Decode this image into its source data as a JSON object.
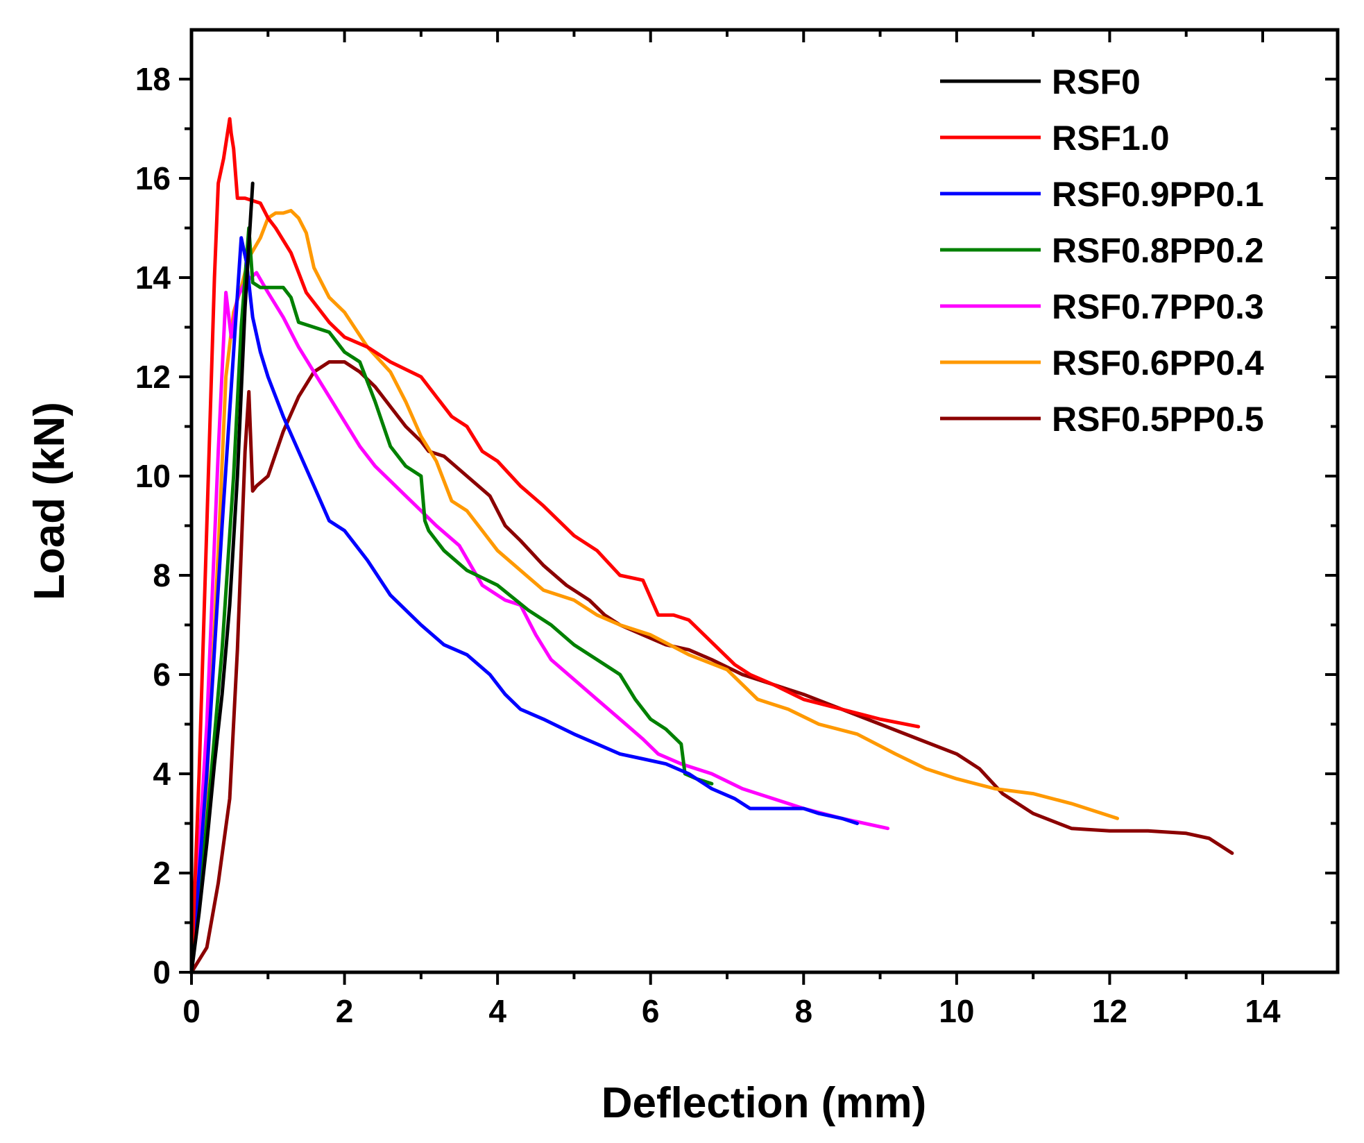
{
  "chart_data": {
    "type": "line",
    "title": "",
    "xlabel": "Deflection (mm)",
    "ylabel": "Load (kN)",
    "xlim": [
      0,
      15
    ],
    "ylim": [
      0,
      19
    ],
    "xticks": [
      0,
      2,
      4,
      6,
      8,
      10,
      12,
      14
    ],
    "yticks": [
      0,
      2,
      4,
      6,
      8,
      10,
      12,
      14,
      16,
      18
    ],
    "xtick_labels": [
      "0",
      "2",
      "4",
      "6",
      "8",
      "10",
      "12",
      "14"
    ],
    "ytick_labels": [
      "0",
      "2",
      "4",
      "6",
      "8",
      "10",
      "12",
      "14",
      "16",
      "18"
    ],
    "legend_position": "top-right",
    "grid": false,
    "series": [
      {
        "name": "RSF0",
        "color": "#000000",
        "x": [
          0,
          0.1,
          0.2,
          0.3,
          0.4,
          0.5,
          0.6,
          0.7,
          0.8
        ],
        "y": [
          0,
          1.2,
          2.6,
          4.2,
          5.6,
          7.4,
          10.0,
          13.4,
          15.9
        ]
      },
      {
        "name": "RSF1.0",
        "color": "#ff0000",
        "x": [
          0,
          0.1,
          0.2,
          0.3,
          0.35,
          0.42,
          0.5,
          0.52,
          0.55,
          0.6,
          0.7,
          0.9,
          1.0,
          1.1,
          1.3,
          1.5,
          1.8,
          2.0,
          2.3,
          2.6,
          3.0,
          3.2,
          3.4,
          3.6,
          3.8,
          4.0,
          4.3,
          4.6,
          5.0,
          5.3,
          5.6,
          5.9,
          6.1,
          6.3,
          6.5,
          6.9,
          7.1,
          7.3,
          7.6,
          8.0,
          8.5,
          9.0,
          9.5
        ],
        "y": [
          0,
          4.0,
          9.0,
          14.0,
          15.9,
          16.4,
          17.2,
          16.9,
          16.6,
          15.6,
          15.6,
          15.5,
          15.2,
          15.0,
          14.5,
          13.7,
          13.1,
          12.8,
          12.6,
          12.3,
          12.0,
          11.6,
          11.2,
          11.0,
          10.5,
          10.3,
          9.8,
          9.4,
          8.8,
          8.5,
          8.0,
          7.9,
          7.2,
          7.2,
          7.1,
          6.5,
          6.2,
          6.0,
          5.8,
          5.5,
          5.3,
          5.1,
          4.95
        ]
      },
      {
        "name": "RSF0.9PP0.1",
        "color": "#0000ff",
        "x": [
          0,
          0.2,
          0.4,
          0.55,
          0.65,
          0.72,
          0.8,
          0.9,
          1.0,
          1.2,
          1.4,
          1.6,
          1.8,
          1.9,
          2.0,
          2.3,
          2.6,
          3.0,
          3.3,
          3.6,
          3.9,
          4.1,
          4.3,
          4.6,
          5.0,
          5.3,
          5.6,
          5.9,
          6.2,
          6.5,
          6.8,
          7.1,
          7.3,
          7.6,
          8.0,
          8.2,
          8.5,
          8.7
        ],
        "y": [
          0,
          4.0,
          9.0,
          12.5,
          14.8,
          14.3,
          13.2,
          12.5,
          12.0,
          11.2,
          10.5,
          9.8,
          9.1,
          9.0,
          8.9,
          8.3,
          7.6,
          7.0,
          6.6,
          6.4,
          6.0,
          5.6,
          5.3,
          5.1,
          4.8,
          4.6,
          4.4,
          4.3,
          4.2,
          4.0,
          3.7,
          3.5,
          3.3,
          3.3,
          3.3,
          3.2,
          3.1,
          3.0
        ]
      },
      {
        "name": "RSF0.8PP0.2",
        "color": "#008000",
        "x": [
          0,
          0.2,
          0.4,
          0.55,
          0.65,
          0.75,
          0.8,
          0.9,
          1.0,
          1.2,
          1.3,
          1.4,
          1.6,
          1.8,
          2.0,
          2.2,
          2.4,
          2.6,
          2.8,
          3.0,
          3.05,
          3.1,
          3.3,
          3.6,
          4.0,
          4.4,
          4.7,
          5.0,
          5.3,
          5.6,
          5.8,
          6.0,
          6.2,
          6.4,
          6.45,
          6.6,
          6.8
        ],
        "y": [
          0,
          3.0,
          6.5,
          10.0,
          13.0,
          15.0,
          13.9,
          13.8,
          13.8,
          13.8,
          13.6,
          13.1,
          13.0,
          12.9,
          12.5,
          12.3,
          11.5,
          10.6,
          10.2,
          10.0,
          9.1,
          8.9,
          8.5,
          8.1,
          7.8,
          7.3,
          7.0,
          6.6,
          6.3,
          6.0,
          5.5,
          5.1,
          4.9,
          4.6,
          4.0,
          3.9,
          3.8
        ]
      },
      {
        "name": "RSF0.7PP0.3",
        "color": "#ff00ff",
        "x": [
          0,
          0.2,
          0.35,
          0.45,
          0.52,
          0.6,
          0.7,
          0.85,
          1.0,
          1.2,
          1.4,
          1.6,
          1.8,
          2.0,
          2.2,
          2.4,
          2.6,
          2.8,
          3.0,
          3.2,
          3.5,
          3.8,
          4.1,
          4.3,
          4.5,
          4.7,
          5.0,
          5.3,
          5.6,
          5.9,
          6.1,
          6.4,
          6.8,
          7.2,
          7.6,
          8.0,
          8.5,
          9.1
        ],
        "y": [
          0,
          5.0,
          10.5,
          13.7,
          12.8,
          13.6,
          13.9,
          14.1,
          13.7,
          13.2,
          12.6,
          12.1,
          11.6,
          11.1,
          10.6,
          10.2,
          9.9,
          9.6,
          9.3,
          9.0,
          8.6,
          7.8,
          7.5,
          7.4,
          6.8,
          6.3,
          5.9,
          5.5,
          5.1,
          4.7,
          4.4,
          4.2,
          4.0,
          3.7,
          3.5,
          3.3,
          3.1,
          2.9
        ]
      },
      {
        "name": "RSF0.6PP0.4",
        "color": "#ff9900",
        "x": [
          0,
          0.2,
          0.35,
          0.45,
          0.55,
          0.65,
          0.75,
          0.9,
          1.0,
          1.1,
          1.2,
          1.3,
          1.4,
          1.5,
          1.6,
          1.8,
          2.0,
          2.3,
          2.6,
          2.8,
          3.0,
          3.2,
          3.4,
          3.6,
          3.8,
          4.0,
          4.3,
          4.6,
          5.0,
          5.3,
          5.6,
          6.0,
          6.5,
          7.0,
          7.4,
          7.8,
          8.2,
          8.7,
          9.2,
          9.6,
          10.0,
          10.5,
          11.0,
          11.5,
          12.1
        ],
        "y": [
          0,
          3.8,
          8.5,
          12.0,
          13.3,
          13.8,
          14.4,
          14.8,
          15.2,
          15.3,
          15.3,
          15.35,
          15.2,
          14.9,
          14.2,
          13.6,
          13.3,
          12.6,
          12.1,
          11.5,
          10.8,
          10.3,
          9.5,
          9.3,
          8.9,
          8.5,
          8.1,
          7.7,
          7.5,
          7.2,
          7.0,
          6.8,
          6.4,
          6.1,
          5.5,
          5.3,
          5.0,
          4.8,
          4.4,
          4.1,
          3.9,
          3.7,
          3.6,
          3.4,
          3.1
        ]
      },
      {
        "name": "RSF0.5PP0.5",
        "color": "#8b0000",
        "x": [
          0,
          0.2,
          0.35,
          0.5,
          0.6,
          0.7,
          0.75,
          0.8,
          0.85,
          1.0,
          1.2,
          1.4,
          1.6,
          1.8,
          2.0,
          2.2,
          2.4,
          2.6,
          2.8,
          3.0,
          3.1,
          3.3,
          3.6,
          3.9,
          4.1,
          4.3,
          4.6,
          4.9,
          5.2,
          5.4,
          5.6,
          5.9,
          6.2,
          6.5,
          6.8,
          7.2,
          7.6,
          8.0,
          8.5,
          9.0,
          9.5,
          10.0,
          10.3,
          10.6,
          11.0,
          11.5,
          12.0,
          12.5,
          13.0,
          13.3,
          13.6
        ],
        "y": [
          0,
          0.5,
          1.8,
          3.5,
          6.5,
          10.5,
          11.7,
          9.7,
          9.8,
          10.0,
          10.9,
          11.6,
          12.1,
          12.3,
          12.3,
          12.1,
          11.8,
          11.4,
          11.0,
          10.7,
          10.5,
          10.4,
          10.0,
          9.6,
          9.0,
          8.7,
          8.2,
          7.8,
          7.5,
          7.2,
          7.0,
          6.8,
          6.6,
          6.5,
          6.3,
          6.0,
          5.8,
          5.6,
          5.3,
          5.0,
          4.7,
          4.4,
          4.1,
          3.6,
          3.2,
          2.9,
          2.85,
          2.85,
          2.8,
          2.7,
          2.4
        ]
      }
    ]
  }
}
